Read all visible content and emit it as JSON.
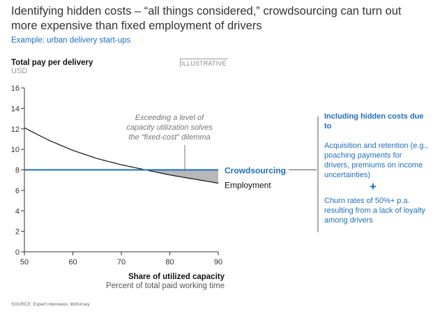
{
  "header": {
    "title": "Identifying hidden costs – “all things considered,” crowdsourcing can turn out more expensive than fixed employment of drivers",
    "subtitle": "Example: urban delivery start-ups",
    "badge": "ILLUSTRATIVE"
  },
  "chart_data": {
    "type": "line",
    "title": "",
    "ylabel": "Total pay per delivery",
    "yunit": "USD",
    "xlabel": "Share of utilized capacity",
    "xunit": "Percent of total paid working time",
    "xlim": [
      50,
      90
    ],
    "ylim": [
      0,
      16
    ],
    "xticks": [
      50,
      60,
      70,
      80,
      90
    ],
    "yticks": [
      0,
      2,
      4,
      6,
      8,
      10,
      12,
      14,
      16
    ],
    "grid": false,
    "series": [
      {
        "name": "Crowdsourcing",
        "color": "#1f6fc0",
        "x": [
          50,
          90
        ],
        "y": [
          8,
          8
        ]
      },
      {
        "name": "Employment",
        "color": "#111111",
        "x": [
          50,
          55,
          60,
          65,
          70,
          75,
          80,
          85,
          90
        ],
        "y": [
          12.1,
          10.9,
          9.9,
          9.1,
          8.5,
          8.0,
          7.5,
          7.1,
          6.7
        ]
      }
    ],
    "shaded_region": {
      "between": [
        "Crowdsourcing",
        "Employment"
      ],
      "x_from": 75,
      "x_to": 90,
      "color": "#b8b8b8"
    },
    "annotation": "Exceeding a level of capacity utilization solves the “fixed-cost” dilemma"
  },
  "callout": {
    "heading": "Including hidden costs due to",
    "item1": "Acquisition and retention (e.g., poaching payments for drivers, premiums on income uncertainties)",
    "plus": "+",
    "item2": "Churn rates of 50%+ p.a. resulting from a lack of loyalty among drivers"
  },
  "footer": {
    "source": "SOURCE: Expert interviews; McKinsey"
  }
}
